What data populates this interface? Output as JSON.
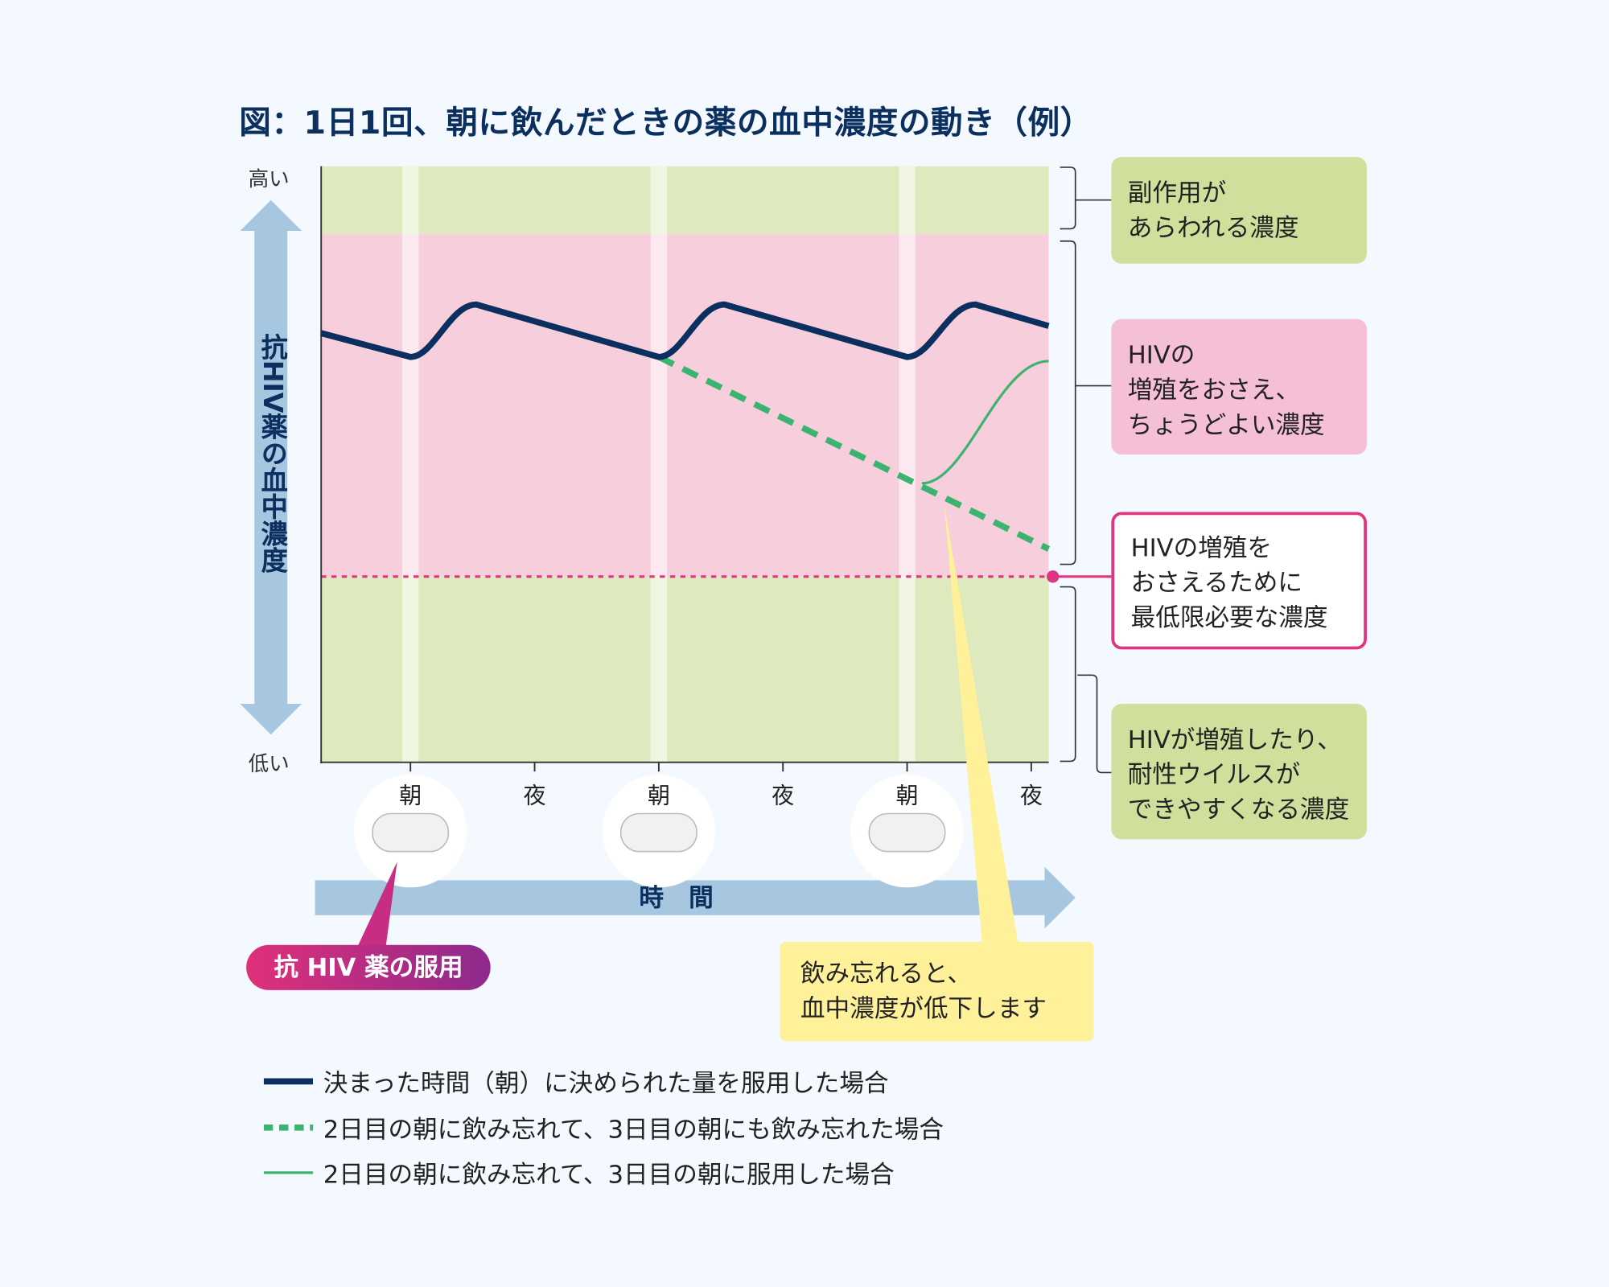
{
  "title": "図：1日1回、朝に飲んだときの薬の血中濃度の動き（例）",
  "colors": {
    "navy": "#0b2f5e",
    "green": "#3cb371",
    "pink_zone": "#f7cedc",
    "green_zone": "#deeabd",
    "threshold": "#e03682",
    "callout_yellow": "#fff19a",
    "magenta": "#e0307a"
  },
  "chart_data": {
    "type": "line",
    "title": "図：1日1回、朝に飲んだときの薬の血中濃度の動き（例）",
    "ylabel": "抗HIV薬の血中濃度",
    "xlabel": "時 間",
    "y_high_label": "高い",
    "y_low_label": "低い",
    "x_ticks": [
      "朝",
      "夜",
      "朝",
      "夜",
      "朝",
      "夜"
    ],
    "xlim": [
      -0.72,
      5.14
    ],
    "ylim": [
      0,
      100
    ],
    "grid": false,
    "legend_position": "bottom",
    "zones": {
      "side_effect_min": 88.6,
      "effective_min": 31.2
    },
    "series": [
      {
        "name": "決まった時間（朝）に決められた量を服用した場合",
        "style": "solid-thick",
        "color": "#0b2f5e",
        "points": [
          [
            -0.72,
            72
          ],
          [
            0,
            68
          ],
          [
            0.53,
            76.8
          ],
          [
            2,
            68
          ],
          [
            2.53,
            76.8
          ],
          [
            4,
            68
          ],
          [
            4.55,
            76.8
          ],
          [
            5.14,
            73.2
          ]
        ]
      },
      {
        "name": "2日目の朝に飲み忘れて、3日目の朝にも飲み忘れた場合",
        "style": "dashed",
        "color": "#3cb371",
        "points": [
          [
            2,
            68
          ],
          [
            5.14,
            35.8
          ]
        ]
      },
      {
        "name": "2日目の朝に飲み忘れて、3日目の朝に服用した場合",
        "style": "solid-thin",
        "color": "#3cb371",
        "points": [
          [
            4.12,
            46.8
          ],
          [
            5.14,
            67.3
          ]
        ]
      }
    ]
  },
  "zone_labels": {
    "side_effect": "副作用が\nあらわれる濃度",
    "optimal": "HIVの\n増殖をおさえ、\nちょうどよい濃度",
    "minimum": "HIVの増殖を\nおさえるために\n最低限必要な濃度",
    "resistance": "HIVが増殖したり、\n耐性ウイルスが\nできやすくなる濃度"
  },
  "dose_label": "抗 HIV 薬の服用",
  "missed_callout": "飲み忘れると、\n血中濃度が低下します",
  "icons": {
    "pill": "pill-icon",
    "arrow": "double-arrow-icon"
  }
}
